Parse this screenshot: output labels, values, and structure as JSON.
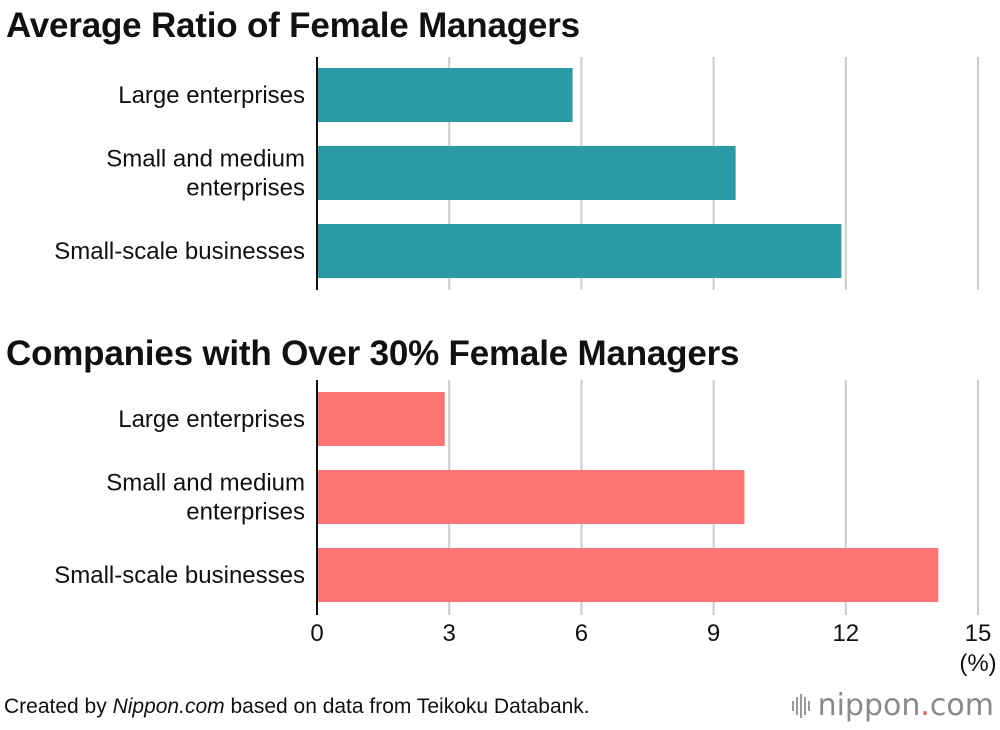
{
  "chart_data": [
    {
      "type": "bar",
      "orientation": "horizontal",
      "title": "Average Ratio of Female Managers",
      "categories": [
        "Large enterprises",
        "Small and medium enterprises",
        "Small-scale businesses"
      ],
      "category_lines": [
        [
          "Large enterprises"
        ],
        [
          "Small and medium",
          "enterprises"
        ],
        [
          "Small-scale businesses"
        ]
      ],
      "values": [
        5.8,
        9.5,
        11.9
      ],
      "color": "#2a9ba5",
      "xlim": [
        0,
        15
      ],
      "grid": true
    },
    {
      "type": "bar",
      "orientation": "horizontal",
      "title": "Companies with Over 30% Female Managers",
      "categories": [
        "Large enterprises",
        "Small and medium enterprises",
        "Small-scale businesses"
      ],
      "category_lines": [
        [
          "Large enterprises"
        ],
        [
          "Small and medium",
          "enterprises"
        ],
        [
          "Small-scale businesses"
        ]
      ],
      "values": [
        2.9,
        9.7,
        14.1
      ],
      "color": "#ff7474",
      "xlim": [
        0,
        15
      ],
      "grid": true
    }
  ],
  "x_axis": {
    "ticks": [
      "0",
      "3",
      "6",
      "9",
      "12",
      "15"
    ],
    "tick_values": [
      0,
      3,
      6,
      9,
      12,
      15
    ],
    "unit": "(%)"
  },
  "footer": {
    "prefix": "Created by ",
    "brand": "Nippon.com",
    "suffix": " based on data from Teikoku Databank."
  },
  "logo": {
    "name": "nippon",
    "dot": ".",
    "tld": "com"
  },
  "colors": {
    "grid": "#cccccc",
    "axis": "#111111"
  }
}
